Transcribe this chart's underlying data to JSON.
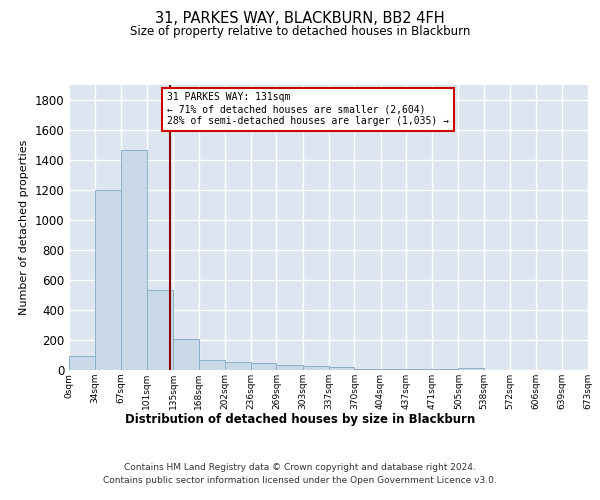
{
  "title": "31, PARKES WAY, BLACKBURN, BB2 4FH",
  "subtitle": "Size of property relative to detached houses in Blackburn",
  "xlabel": "Distribution of detached houses by size in Blackburn",
  "ylabel": "Number of detached properties",
  "bin_edges": [
    0,
    34,
    67,
    101,
    135,
    168,
    202,
    236,
    269,
    303,
    337,
    370,
    404,
    437,
    471,
    505,
    538,
    572,
    606,
    639,
    673
  ],
  "bar_heights": [
    95,
    1200,
    1470,
    535,
    205,
    70,
    55,
    45,
    35,
    25,
    20,
    10,
    10,
    5,
    5,
    15,
    3,
    3,
    3,
    3
  ],
  "bar_color": "#c9d9e8",
  "bar_edge_color": "#8aafc8",
  "property_line_x": 131,
  "property_line_color": "#8b0000",
  "annotation_text": "31 PARKES WAY: 131sqm\n← 71% of detached houses are smaller (2,604)\n28% of semi-detached houses are larger (1,035) →",
  "annotation_box_color": "#ffffff",
  "annotation_box_edge_color": "#cc0000",
  "ylim": [
    0,
    1900
  ],
  "yticks": [
    0,
    200,
    400,
    600,
    800,
    1000,
    1200,
    1400,
    1600,
    1800
  ],
  "background_color": "#dde6f0",
  "grid_color": "#ffffff",
  "footer_line1": "Contains HM Land Registry data © Crown copyright and database right 2024.",
  "footer_line2": "Contains public sector information licensed under the Open Government Licence v3.0."
}
